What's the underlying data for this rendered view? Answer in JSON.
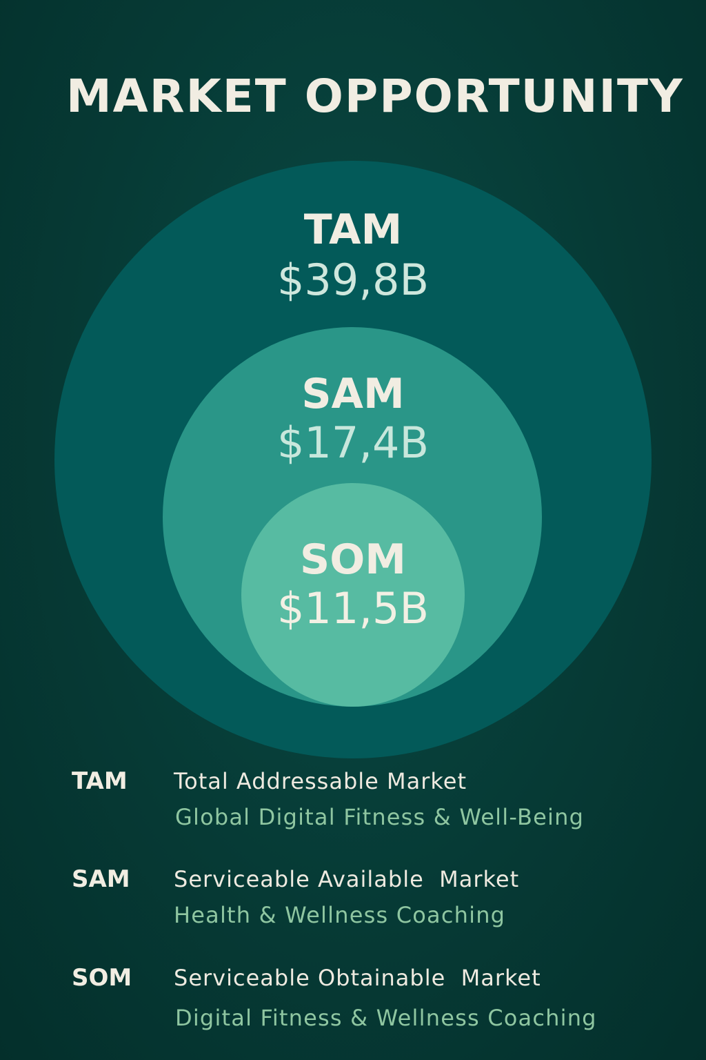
{
  "title": "MARKET OPPORTUNITY",
  "colors": {
    "background": "#063a35",
    "tam_circle": "#035a59",
    "sam_circle": "#2a9688",
    "som_circle": "#57bba2",
    "title_text": "#f1ede2",
    "label_text": "#f1ede2",
    "tam_value_text": "#cfe7dd",
    "sam_value_text": "#c8e7dc",
    "som_value_text": "#f3f0e4",
    "legend_abbr_text": "#f1ede2",
    "legend_name_text": "#eeeae0",
    "legend_desc_text": "#8fc6a1"
  },
  "circles": [
    {
      "id": "tam",
      "label": "TAM",
      "value": "$39,8B"
    },
    {
      "id": "sam",
      "label": "SAM",
      "value": "$17,4B"
    },
    {
      "id": "som",
      "label": "SOM",
      "value": "$11,5B"
    }
  ],
  "legend": [
    {
      "abbr": "TAM",
      "name": "Total Addressable Market",
      "description": "Global Digital Fitness & Well-Being"
    },
    {
      "abbr": "SAM",
      "name": "Serviceable Available  Market",
      "description": "Health & Wellness Coaching"
    },
    {
      "abbr": "SOM",
      "name": "Serviceable Obtainable  Market",
      "description": "Digital Fitness & Wellness Coaching"
    }
  ]
}
